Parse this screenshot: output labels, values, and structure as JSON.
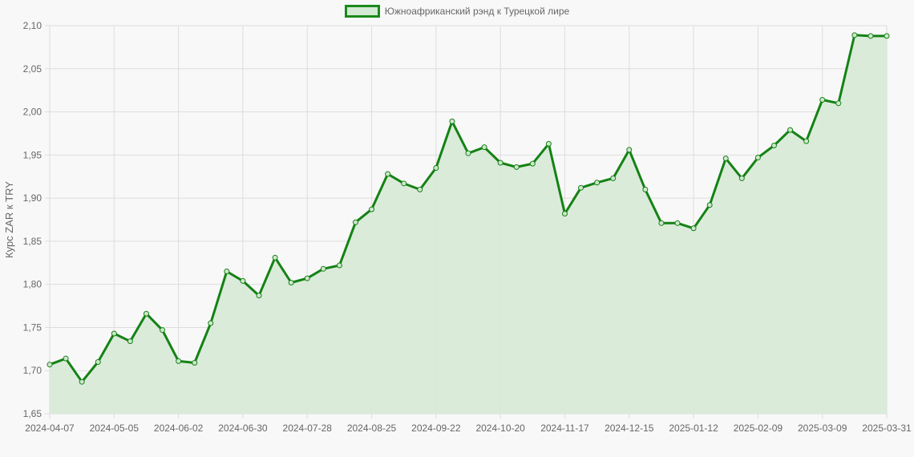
{
  "legend": {
    "label": "Южноафриканский рэнд к Турецкой лире"
  },
  "colors": {
    "line": "#148214",
    "fill": "#d8ead8",
    "grid": "#dddddd",
    "axis_text": "#666666"
  },
  "chart_data": {
    "type": "line",
    "title": "",
    "xlabel": "",
    "ylabel": "Курс ZAR к TRY",
    "ylim": [
      1.65,
      2.1
    ],
    "yticks": [
      "2,10",
      "2,05",
      "2,00",
      "1,95",
      "1,90",
      "1,85",
      "1,80",
      "1,75",
      "1,70",
      "1,65"
    ],
    "xtick_labels": [
      "2024-04-07",
      "2024-05-05",
      "2024-06-02",
      "2024-06-30",
      "2024-07-28",
      "2024-08-25",
      "2024-09-22",
      "2024-10-20",
      "2024-11-17",
      "2024-12-15",
      "2025-01-12",
      "2025-02-09",
      "2025-03-09",
      "2025-03-31"
    ],
    "legend_position": "top",
    "grid": true,
    "series": [
      {
        "name": "Южноафриканский рэнд к Турецкой лире",
        "values": [
          1.707,
          1.714,
          1.687,
          1.71,
          1.743,
          1.734,
          1.766,
          1.747,
          1.711,
          1.709,
          1.755,
          1.815,
          1.804,
          1.787,
          1.831,
          1.802,
          1.807,
          1.818,
          1.822,
          1.872,
          1.887,
          1.928,
          1.917,
          1.91,
          1.935,
          1.989,
          1.952,
          1.959,
          1.941,
          1.936,
          1.94,
          1.963,
          1.882,
          1.912,
          1.918,
          1.923,
          1.956,
          1.91,
          1.871,
          1.871,
          1.865,
          1.892,
          1.946,
          1.923,
          1.947,
          1.961,
          1.979,
          1.966,
          2.014,
          2.01,
          2.089,
          2.088,
          2.088
        ]
      }
    ]
  }
}
